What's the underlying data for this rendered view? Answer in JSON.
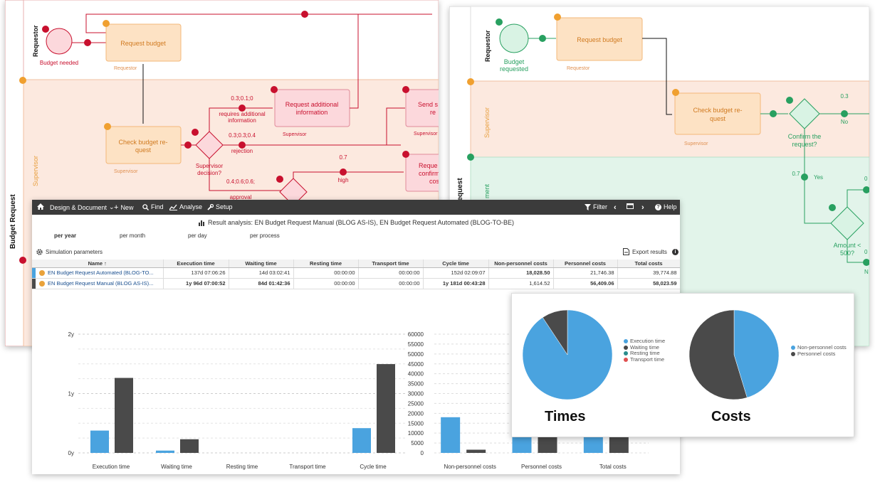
{
  "asis": {
    "pool": "Budget Request",
    "lanes": {
      "requestor": "Requestor",
      "supervisor": "Supervisor"
    },
    "start_event": "Budget needed",
    "tasks": {
      "request_budget": "Request budget",
      "check_budget_1": "Check budget re-",
      "check_budget_2": "quest",
      "request_info_1": "Request additional",
      "request_info_2": "information",
      "send_1": "Send s",
      "send_2": "re",
      "req_confirm_1": "Reque",
      "req_confirm_2": "confirm",
      "req_confirm_3": "cos"
    },
    "roles": {
      "requestor": "Requestor",
      "supervisor": "Supervisor"
    },
    "gateway": {
      "label_1": "Supervisor",
      "label_2": "decision?"
    },
    "flows": {
      "prob_info": "0.3;0.1;0",
      "label_info_1": "requires additional",
      "label_info_2": "information",
      "prob_rejection": "0.3;0.3;0.4",
      "label_rejection": "rejection",
      "prob_approval": "0.4;0.6;0.6;",
      "label_approval": "approval",
      "prob_high": "0.7",
      "label_high": "high"
    }
  },
  "tobe": {
    "pool": "Budget Request",
    "lanes": {
      "requestor": "Requestor",
      "supervisor": "Supervisor",
      "management": "ment"
    },
    "start_event_1": "Budget",
    "start_event_2": "requested",
    "tasks": {
      "request_budget": "Request budget",
      "check_budget_1": "Check budget re-",
      "check_budget_2": "quest"
    },
    "roles": {
      "requestor": "Requestor",
      "supervisor": "Supervisor"
    },
    "gateway_confirm_1": "Confirm the",
    "gateway_confirm_2": "request?",
    "gateway_amount_1": "Amount <",
    "gateway_amount_2": "500?",
    "prob_no": "0.3",
    "label_no": "No",
    "prob_yes": "0.7",
    "label_yes": "Yes",
    "prob_right_top": "0",
    "prob_right_mid": "0",
    "label_right_bottom": "N"
  },
  "toolbar": {
    "design": "Design & Document",
    "new": "New",
    "find": "Find",
    "analyse": "Analyse",
    "setup": "Setup",
    "filter": "Filter",
    "help": "Help"
  },
  "result": {
    "title": "Result analysis: EN Budget Request Manual (BLOG AS-IS), EN Budget Request Automated (BLOG-TO-BE)",
    "periods": [
      "per year",
      "per month",
      "per day",
      "per process"
    ],
    "sim_params": "Simulation parameters",
    "export": "Export results",
    "columns": [
      "Name ↑",
      "Execution time",
      "Waiting time",
      "Resting time",
      "Transport time",
      "Cycle time",
      "Non-personnel costs",
      "Personnel costs",
      "Total costs"
    ],
    "rows": [
      {
        "name": "EN Budget Request Automated (BLOG-TO...",
        "exec": "137d 07:06:26",
        "wait": "14d 03:02:41",
        "rest": "00:00:00",
        "transport": "00:00:00",
        "cycle": "152d 02:09:07",
        "nonpers": "18,028.50",
        "pers": "21,746.38",
        "total": "39,774.88"
      },
      {
        "name": "EN Budget Request Manual (BLOG AS-IS)...",
        "exec": "1y 96d 07:00:52",
        "wait": "84d 01:42:36",
        "rest": "00:00:00",
        "transport": "00:00:00",
        "cycle": "1y 181d 00:43:28",
        "nonpers": "1,614.52",
        "pers": "56,409.06",
        "total": "58,023.59"
      }
    ]
  },
  "colors": {
    "tobe": "#4aa3df",
    "asis": "#4a4a4a",
    "resting": "#2a8c8c",
    "transport": "#e05050"
  },
  "chart_data": [
    {
      "type": "bar",
      "categories": [
        "Execution time",
        "Waiting time",
        "Resting time",
        "Transport time",
        "Cycle time"
      ],
      "ytick_labels": [
        "0y",
        "1y",
        "2y"
      ],
      "ylim": [
        0,
        2
      ],
      "series": [
        {
          "values": [
            0.376,
            0.039,
            0,
            0,
            0.417
          ]
        },
        {
          "values": [
            1.263,
            0.23,
            0,
            0,
            1.496
          ]
        }
      ]
    },
    {
      "type": "bar",
      "categories": [
        "Non-personnel costs",
        "Personnel costs",
        "Total costs"
      ],
      "yticks": [
        0,
        5000,
        10000,
        15000,
        20000,
        25000,
        30000,
        35000,
        40000,
        45000,
        50000,
        55000,
        60000
      ],
      "ylim": [
        0,
        60000
      ],
      "series": [
        {
          "values": [
            18028.5,
            21746.38,
            39774.88
          ]
        },
        {
          "values": [
            1614.52,
            56409.06,
            58023.59
          ]
        }
      ]
    },
    {
      "type": "pie",
      "title": "Times",
      "labels": [
        "Execution time",
        "Waiting time",
        "Resting time",
        "Transport time"
      ],
      "values": [
        90.7,
        9.3,
        0,
        0
      ]
    },
    {
      "type": "pie",
      "title": "Costs",
      "labels": [
        "Non-personnel costs",
        "Personnel costs"
      ],
      "values": [
        45.3,
        54.7
      ]
    }
  ]
}
